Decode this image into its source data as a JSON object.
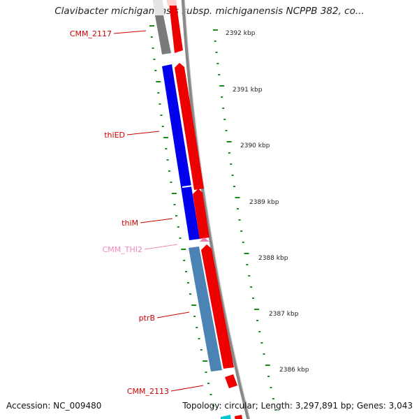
{
  "title": "Clavibacter michiganensis subsp. michiganensis NCPPB 382, co...",
  "footer": {
    "accession": "Accession: NC_009480",
    "topology": "Topology: circular; Length: 3,297,891 bp; Genes: 3,043"
  },
  "colors": {
    "backbone": "#888888",
    "forward_strand": "#ee0000",
    "tick": "#1a8a1a",
    "gene_label_default": "#cc0000",
    "gene_label_rna": "#ee88b8"
  },
  "genes": [
    {
      "name": "CMM_2117",
      "label": "CMM_2117",
      "color": "#7a7a7a",
      "label_color": "#cc0000"
    },
    {
      "name": "thiED",
      "label": "thiED",
      "color": "#0000ee",
      "label_color": "#cc0000"
    },
    {
      "name": "thiM",
      "label": "thiM",
      "color": "#0000ee",
      "label_color": "#cc0000"
    },
    {
      "name": "CMM_THI2",
      "label": "CMM_THI2",
      "color": "#f07ab4",
      "label_color": "#ee88b8"
    },
    {
      "name": "ptrB",
      "label": "ptrB",
      "color": "#4b84b4",
      "label_color": "#cc0000"
    },
    {
      "name": "CMM_2113",
      "label": "CMM_2113",
      "color": "#00c8d0",
      "label_color": "#cc0000"
    }
  ],
  "scale_ticks": [
    {
      "label": "2392 kbp"
    },
    {
      "label": "2391 kbp"
    },
    {
      "label": "2390 kbp"
    },
    {
      "label": "2389 kbp"
    },
    {
      "label": "2388 kbp"
    },
    {
      "label": "2387 kbp"
    },
    {
      "label": "2386 kbp"
    }
  ]
}
